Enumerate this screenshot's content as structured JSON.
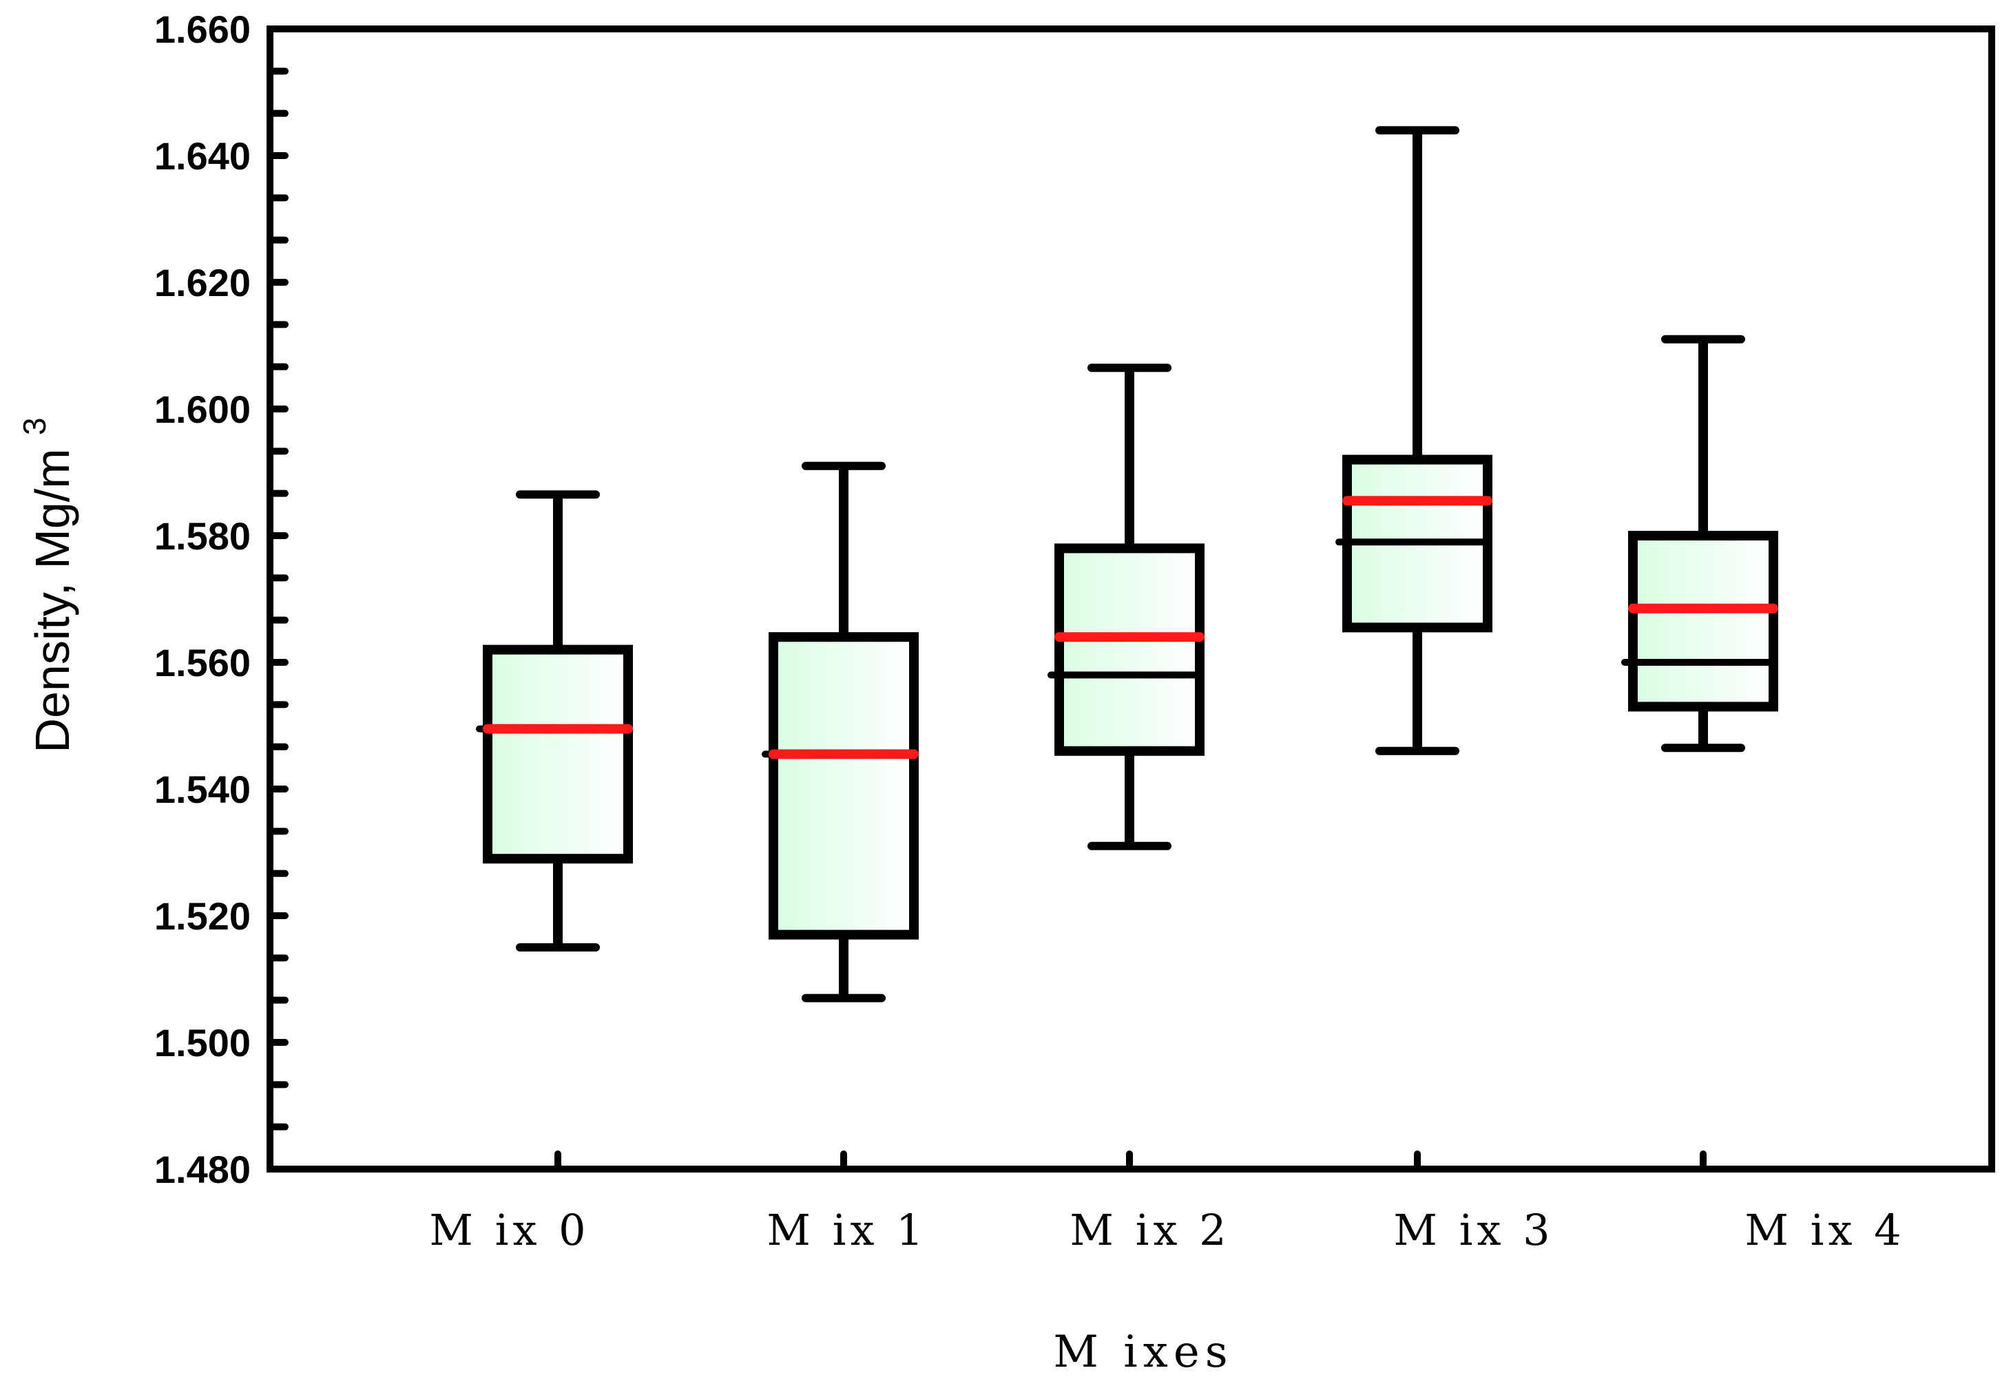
{
  "chart_data": {
    "type": "box",
    "title": "",
    "xlabel": "M ixes",
    "ylabel": "Density, Mg/m",
    "ylabel_superscript": "3",
    "ylim": [
      1.48,
      1.66
    ],
    "yticks": [
      "1.480",
      "1.500",
      "1.520",
      "1.540",
      "1.560",
      "1.580",
      "1.600",
      "1.620",
      "1.640",
      "1.660"
    ],
    "ytick_values": [
      1.48,
      1.5,
      1.52,
      1.54,
      1.56,
      1.58,
      1.6,
      1.62,
      1.64,
      1.66
    ],
    "categories": [
      "M ix 0",
      "M ix 1",
      "M ix 2",
      "M ix 3",
      "M ix 4"
    ],
    "series": [
      {
        "name": "M ix 0",
        "whisker_low": 1.515,
        "q1": 1.529,
        "median": 1.5495,
        "mean": 1.5495,
        "q3": 1.562,
        "whisker_high": 1.5865
      },
      {
        "name": "M ix 1",
        "whisker_low": 1.507,
        "q1": 1.517,
        "median": 1.5455,
        "mean": 1.5455,
        "q3": 1.564,
        "whisker_high": 1.591
      },
      {
        "name": "M ix 2",
        "whisker_low": 1.531,
        "q1": 1.546,
        "median": 1.558,
        "mean": 1.564,
        "q3": 1.578,
        "whisker_high": 1.6065
      },
      {
        "name": "M ix 3",
        "whisker_low": 1.546,
        "q1": 1.5655,
        "median": 1.579,
        "mean": 1.5855,
        "q3": 1.592,
        "whisker_high": 1.644
      },
      {
        "name": "M ix 4",
        "whisker_low": 1.5465,
        "q1": 1.553,
        "median": 1.56,
        "mean": 1.5685,
        "q3": 1.58,
        "whisker_high": 1.611
      }
    ],
    "colors": {
      "box_fill_start": "#d9fde3",
      "box_fill_end": "#ffffff",
      "mean_line": "#ff1a1a",
      "frame": "#000000"
    }
  }
}
